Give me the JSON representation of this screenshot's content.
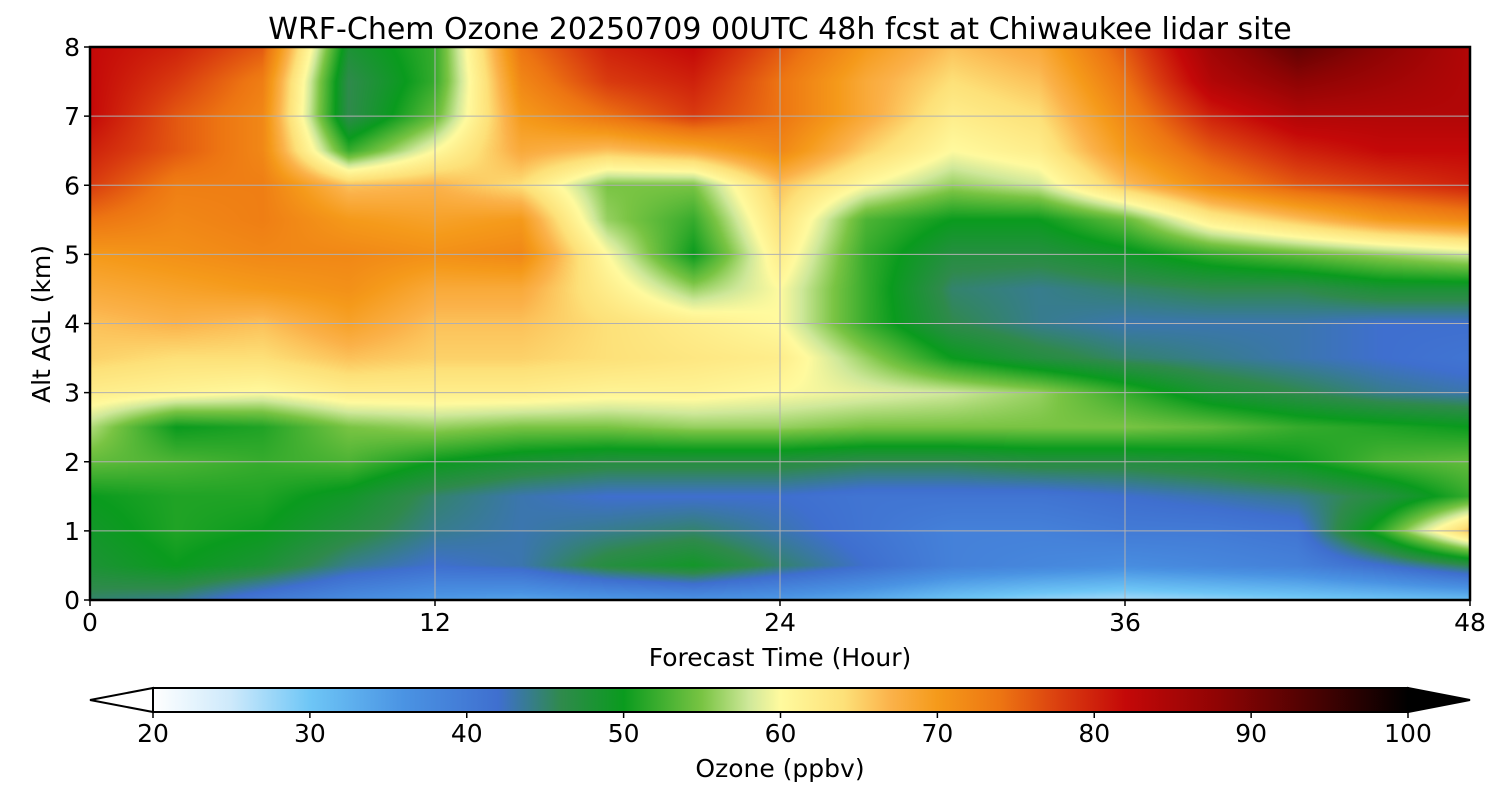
{
  "chart_data": {
    "type": "heatmap",
    "title": "WRF-Chem Ozone  20250709 00UTC 48h fcst at Chiwaukee lidar site",
    "xlabel": "Forecast Time (Hour)",
    "ylabel": "Alt AGL (km)",
    "xlim": [
      0,
      48
    ],
    "ylim": [
      0,
      8
    ],
    "xticks": [
      "0",
      "12",
      "24",
      "36",
      "48"
    ],
    "yticks": [
      "0",
      "1",
      "2",
      "3",
      "4",
      "5",
      "6",
      "7",
      "8"
    ],
    "grid": true,
    "x": [
      0,
      3,
      6,
      9,
      12,
      15,
      18,
      21,
      24,
      27,
      30,
      33,
      36,
      39,
      42,
      45,
      48
    ],
    "y": [
      0,
      0.5,
      1,
      1.5,
      2,
      2.5,
      3,
      3.5,
      4,
      4.5,
      5,
      5.5,
      6,
      6.5,
      7,
      7.5,
      8
    ],
    "z": [
      [
        45,
        44,
        40,
        37,
        35,
        34,
        35,
        36,
        35,
        33,
        30,
        28,
        27,
        28,
        29,
        30,
        31
      ],
      [
        48,
        50,
        48,
        44,
        42,
        43,
        47,
        49,
        45,
        42,
        39,
        38,
        37,
        38,
        39,
        42,
        46
      ],
      [
        49,
        51,
        50,
        47,
        44,
        43,
        44,
        45,
        43,
        41,
        39,
        39,
        40,
        40,
        41,
        52,
        66
      ],
      [
        50,
        51,
        51,
        49,
        45,
        43,
        42,
        42,
        42,
        41,
        41,
        41,
        42,
        43,
        44,
        47,
        52
      ],
      [
        54,
        53,
        52,
        53,
        50,
        48,
        47,
        47,
        47,
        46,
        46,
        47,
        47,
        48,
        50,
        53,
        54
      ],
      [
        57,
        50,
        51,
        55,
        56,
        55,
        55,
        56,
        56,
        55,
        55,
        55,
        55,
        54,
        52,
        51,
        50
      ],
      [
        62,
        61,
        60,
        62,
        62,
        62,
        61,
        61,
        60,
        59,
        58,
        56,
        52,
        48,
        46,
        44,
        43
      ],
      [
        65,
        64,
        64,
        66,
        65,
        65,
        64,
        63,
        62,
        56,
        50,
        47,
        45,
        44,
        43,
        42,
        41
      ],
      [
        66,
        67,
        66,
        69,
        66,
        66,
        64,
        62,
        60,
        52,
        46,
        44,
        43,
        43,
        43,
        42,
        42
      ],
      [
        68,
        69,
        70,
        71,
        68,
        68,
        62,
        56,
        60,
        52,
        45,
        44,
        45,
        46,
        46,
        48,
        48
      ],
      [
        70,
        71,
        72,
        72,
        71,
        72,
        60,
        50,
        62,
        52,
        47,
        47,
        49,
        52,
        54,
        56,
        58
      ],
      [
        74,
        72,
        73,
        70,
        69,
        70,
        56,
        52,
        64,
        53,
        50,
        50,
        54,
        62,
        66,
        70,
        72
      ],
      [
        78,
        73,
        73,
        66,
        67,
        64,
        55,
        55,
        66,
        60,
        56,
        58,
        66,
        72,
        76,
        78,
        80
      ],
      [
        80,
        76,
        72,
        52,
        60,
        68,
        66,
        68,
        72,
        65,
        60,
        62,
        70,
        76,
        80,
        82,
        82
      ],
      [
        82,
        76,
        72,
        46,
        54,
        70,
        74,
        78,
        74,
        68,
        62,
        64,
        72,
        80,
        84,
        84,
        84
      ],
      [
        82,
        78,
        73,
        46,
        52,
        72,
        78,
        80,
        74,
        68,
        64,
        66,
        74,
        84,
        88,
        86,
        84
      ],
      [
        82,
        80,
        76,
        48,
        52,
        74,
        80,
        82,
        76,
        70,
        66,
        68,
        76,
        86,
        92,
        88,
        84
      ]
    ],
    "colorbar": {
      "label": "Ozone  (ppbv)",
      "min": 20,
      "max": 100,
      "ticks": [
        "20",
        "30",
        "40",
        "50",
        "60",
        "70",
        "80",
        "90",
        "100"
      ],
      "extend": "both",
      "stops": [
        {
          "v": 20,
          "color": "#ffffff"
        },
        {
          "v": 25,
          "color": "#cde9fb"
        },
        {
          "v": 30,
          "color": "#6ec6f6"
        },
        {
          "v": 36,
          "color": "#4a93e3"
        },
        {
          "v": 42,
          "color": "#3f6fcf"
        },
        {
          "v": 46,
          "color": "#2f8a4c"
        },
        {
          "v": 50,
          "color": "#0a9b1e"
        },
        {
          "v": 55,
          "color": "#79c443"
        },
        {
          "v": 58,
          "color": "#cfe89a"
        },
        {
          "v": 60,
          "color": "#fffa9e"
        },
        {
          "v": 64,
          "color": "#fde179"
        },
        {
          "v": 67,
          "color": "#fbb24a"
        },
        {
          "v": 70,
          "color": "#f59a1a"
        },
        {
          "v": 74,
          "color": "#ed7512"
        },
        {
          "v": 78,
          "color": "#d93b0f"
        },
        {
          "v": 82,
          "color": "#c40808"
        },
        {
          "v": 88,
          "color": "#8e0404"
        },
        {
          "v": 94,
          "color": "#4a0202"
        },
        {
          "v": 100,
          "color": "#000000"
        }
      ]
    }
  }
}
